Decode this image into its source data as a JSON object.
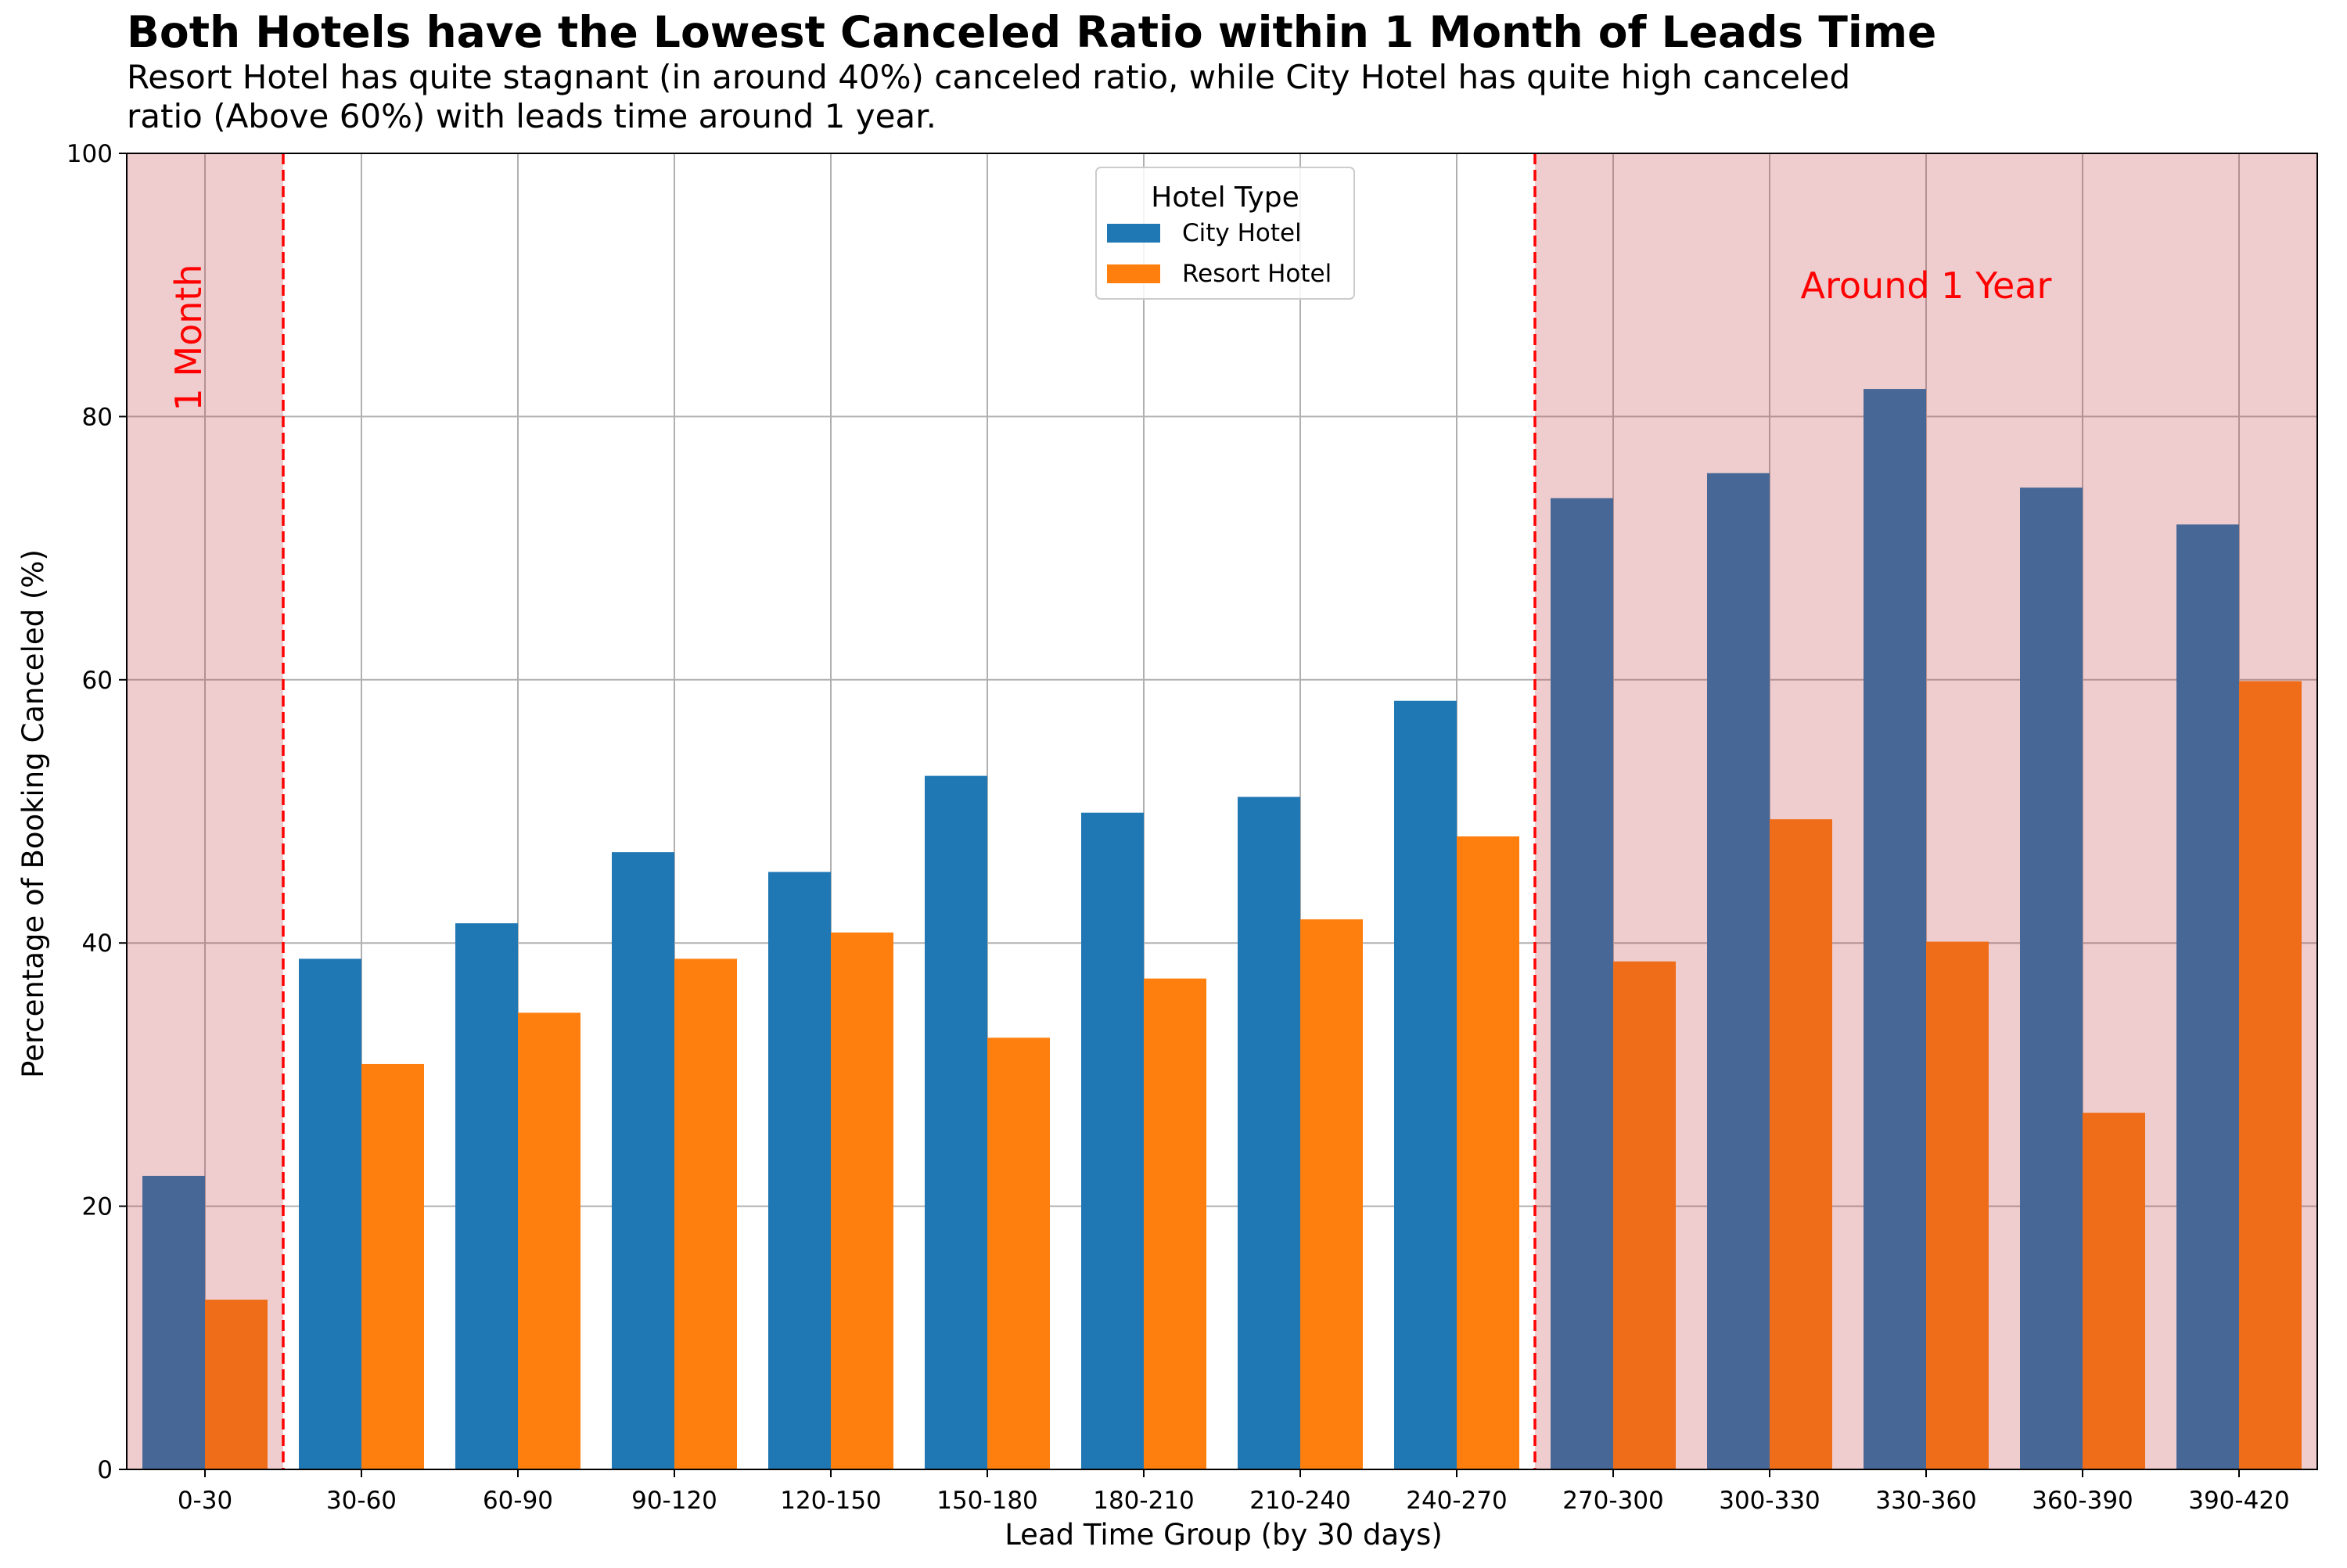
{
  "chart_data": {
    "type": "bar",
    "title": "Both Hotels have the Lowest Canceled Ratio within 1 Month of Leads Time",
    "subtitle_lines": [
      "Resort Hotel has quite stagnant (in around 40%) canceled ratio, while City Hotel has quite high canceled",
      "ratio (Above 60%) with leads time around 1 year."
    ],
    "xlabel": "Lead Time Group (by 30 days)",
    "ylabel": "Percentage of Booking Canceled (%)",
    "ylim": [
      0,
      100
    ],
    "yticks": [
      0,
      20,
      40,
      60,
      80,
      100
    ],
    "grid": true,
    "categories": [
      "0-30",
      "30-60",
      "60-90",
      "90-120",
      "120-150",
      "150-180",
      "180-210",
      "210-240",
      "240-270",
      "270-300",
      "300-330",
      "330-360",
      "360-390",
      "390-420"
    ],
    "series": [
      {
        "name": "City Hotel",
        "color": "#1f77b4",
        "values": [
          22.3,
          38.8,
          41.5,
          46.9,
          45.4,
          52.7,
          49.9,
          51.1,
          58.4,
          73.8,
          75.7,
          82.1,
          74.6,
          71.8
        ]
      },
      {
        "name": "Resort Hotel",
        "color": "#ff7f0e",
        "values": [
          12.9,
          30.8,
          34.7,
          38.8,
          40.8,
          32.8,
          37.3,
          41.8,
          48.1,
          38.6,
          49.4,
          40.1,
          27.1,
          59.9
        ]
      }
    ],
    "legend": {
      "title": "Hotel Type",
      "placement": "top-center"
    },
    "highlight_regions": [
      {
        "categories": [
          "0-30"
        ],
        "label": "1 Month",
        "color": "#c0393b"
      },
      {
        "categories": [
          "270-300",
          "300-330",
          "330-360",
          "360-390",
          "390-420"
        ],
        "label": "Around 1 Year",
        "color": "#c0393b"
      }
    ],
    "annotation_color": "#ff0000"
  }
}
